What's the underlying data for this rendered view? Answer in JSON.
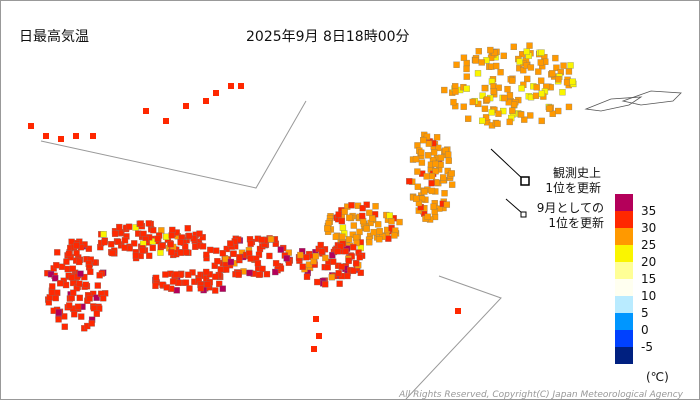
{
  "header": {
    "title": "日最高気温",
    "datetime": "2025年9月 8日18時00分"
  },
  "markers": [
    {
      "lines": [
        "観測史上",
        "1位を更新"
      ]
    },
    {
      "lines": [
        "9月としての",
        "1位を更新"
      ]
    }
  ],
  "legend": {
    "colors": [
      "#b4005a",
      "#ff2800",
      "#ff9900",
      "#faf500",
      "#ffff96",
      "#fffff0",
      "#b9ebff",
      "#0096ff",
      "#0041ff",
      "#002080"
    ],
    "labels": [
      "35",
      "30",
      "25",
      "20",
      "15",
      "10",
      "5",
      "0",
      "-5"
    ],
    "unit": "(℃)"
  },
  "footer": {
    "copyright": "All Rights Reserved, Copyright(C) Japan Meteorological Agency"
  }
}
